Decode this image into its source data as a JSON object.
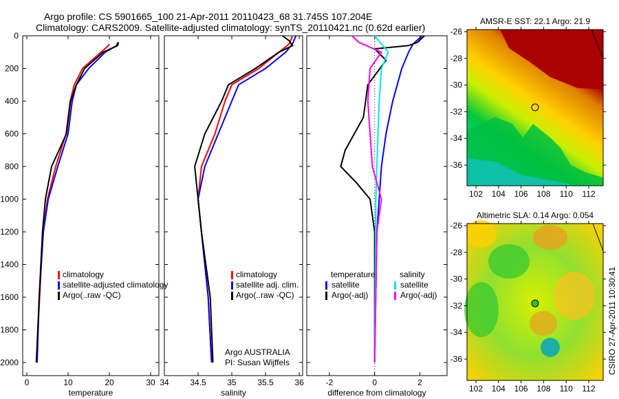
{
  "header": {
    "title_line1": "Argo profile: CS 5901665_100 21-Apr-2011 20110423_68 31.745S 107.204E",
    "title_line2": "Climatology: CARS2009. Satellite-adjusted climatology: synTS_20110421.nc (0.62d earlier)"
  },
  "colors": {
    "climatology": "#ff0000",
    "satellite": "#0000ff",
    "argo": "#000000",
    "sal_satellite": "#00e5ee",
    "sal_argo": "#ff00ff"
  },
  "chart_data": [
    {
      "type": "line",
      "xlabel": "temperature",
      "xlim": [
        -1,
        32
      ],
      "ylim": [
        0,
        2080
      ],
      "xticks": [
        "0",
        "10",
        "20",
        "30"
      ],
      "xtick_values": [
        0,
        10,
        20,
        30
      ],
      "yticks": [
        "0",
        "200",
        "400",
        "600",
        "800",
        "1000",
        "1200",
        "1400",
        "1600",
        "1800",
        "2000"
      ],
      "ytick_values": [
        0,
        200,
        400,
        600,
        800,
        1000,
        1200,
        1400,
        1600,
        1800,
        2000
      ],
      "legend": [
        "climatology",
        "satellite-adjusted climatology",
        "Argo(..raw -QC)"
      ],
      "series": [
        {
          "name": "climatology",
          "color": "#ff0000",
          "depth": [
            50,
            60,
            100,
            200,
            300,
            400,
            600,
            800,
            1000,
            1200,
            1400,
            1800
          ],
          "values": [
            20,
            19.8,
            18,
            13.5,
            11.5,
            10.5,
            9.5,
            7,
            5,
            4,
            3.5,
            2.7
          ]
        },
        {
          "name": "satellite-adjusted climatology",
          "color": "#0000ff",
          "depth": [
            40,
            60,
            100,
            200,
            300,
            400,
            600,
            800,
            1000,
            1200,
            1600,
            2000
          ],
          "values": [
            22,
            21.8,
            19,
            15,
            12,
            11,
            10,
            7.5,
            5.2,
            4,
            3,
            2.5
          ]
        },
        {
          "name": "Argo(..raw -QC)",
          "color": "#000000",
          "depth": [
            40,
            60,
            100,
            200,
            300,
            400,
            600,
            800,
            1000,
            1200,
            1600,
            2000
          ],
          "values": [
            22.2,
            22,
            18.5,
            14,
            12,
            10.6,
            9.6,
            6,
            4.5,
            3.8,
            3,
            2.3
          ]
        }
      ]
    },
    {
      "type": "line",
      "xlabel": "salinity",
      "xlim": [
        34,
        36.05
      ],
      "ylim": [
        0,
        2080
      ],
      "xticks": [
        "34",
        "34.5",
        "35",
        "35.5",
        "36"
      ],
      "xtick_values": [
        34,
        34.5,
        35,
        35.5,
        36
      ],
      "legend": [
        "climatology",
        "satellite adj. clim.",
        "Argo(..raw -QC)"
      ],
      "annotation": [
        "Argo AUSTRALIA",
        "PI: Susan Wijffels"
      ],
      "series": [
        {
          "name": "climatology",
          "color": "#ff0000",
          "depth": [
            0,
            50,
            100,
            200,
            300,
            400,
            600,
            800,
            1000,
            1200,
            1600,
            2000
          ],
          "values": [
            35.9,
            35.85,
            35.7,
            35.4,
            35.0,
            34.9,
            34.75,
            34.55,
            34.5,
            34.55,
            34.65,
            34.7
          ]
        },
        {
          "name": "satellite adj. clim.",
          "color": "#0000ff",
          "depth": [
            0,
            50,
            100,
            200,
            300,
            400,
            600,
            800,
            1000,
            1200,
            1600,
            2000
          ],
          "values": [
            35.95,
            35.9,
            35.8,
            35.5,
            35.1,
            35.0,
            34.8,
            34.6,
            34.5,
            34.55,
            34.65,
            34.7
          ]
        },
        {
          "name": "Argo(..raw -QC)",
          "color": "#000000",
          "depth": [
            0,
            30,
            60,
            100,
            200,
            300,
            400,
            600,
            800,
            1000,
            1200,
            1600,
            2000
          ],
          "values": [
            35.75,
            35.85,
            35.9,
            35.7,
            35.35,
            34.95,
            34.85,
            34.6,
            34.45,
            34.5,
            34.55,
            34.68,
            34.72
          ]
        }
      ]
    },
    {
      "type": "line",
      "xlabel": "difference from climatology",
      "xlim": [
        -3,
        3.2
      ],
      "ylim": [
        0,
        2080
      ],
      "xticks": [
        "-2",
        "0",
        "2"
      ],
      "xtick_values": [
        -2,
        0,
        2
      ],
      "legend_headers": [
        "temperature",
        "salinity"
      ],
      "legend": [
        "satellite",
        "Argo(-adj)",
        "satellite",
        "Argo(-adj)"
      ],
      "series": [
        {
          "name": "temperature satellite",
          "color": "#0000ff",
          "depth": [
            0,
            50,
            100,
            200,
            400,
            600,
            800,
            1000,
            1200,
            2000
          ],
          "values": [
            2.1,
            1.7,
            1.5,
            1.2,
            0.8,
            0.5,
            0.3,
            0.2,
            0.1,
            0
          ]
        },
        {
          "name": "temperature Argo(-adj)",
          "color": "#000000",
          "depth": [
            0,
            40,
            60,
            80,
            150,
            300,
            500,
            700,
            800,
            900,
            1000,
            1200,
            2000
          ],
          "values": [
            2.2,
            1.9,
            1.5,
            0,
            0.5,
            -0.3,
            -0.5,
            -1.3,
            -1.5,
            -0.8,
            -0.2,
            0,
            0
          ]
        },
        {
          "name": "salinity satellite",
          "color": "#00e5ee",
          "depth": [
            0,
            100,
            200,
            400,
            600,
            1000,
            2000
          ],
          "values": [
            0,
            0.6,
            0.3,
            0.2,
            0.15,
            0.05,
            0
          ]
        },
        {
          "name": "salinity Argo(-adj)",
          "color": "#ff00ff",
          "depth": [
            0,
            40,
            100,
            200,
            400,
            600,
            800,
            1000,
            1200,
            2000
          ],
          "values": [
            -1,
            -0.7,
            0.3,
            -0.2,
            -0.3,
            -0.2,
            -0.1,
            0.3,
            0.1,
            0
          ]
        }
      ]
    }
  ],
  "maps": [
    {
      "title": "AMSR-E SST: 22.1 Argo: 21.9",
      "xticks": [
        "102",
        "104",
        "106",
        "108",
        "110",
        "112"
      ],
      "yticks": [
        "-26",
        "-28",
        "-30",
        "-32",
        "-34",
        "-36"
      ]
    },
    {
      "title": "Altimetric SLA: 0.14 Argo: 0.054",
      "xticks": [
        "102",
        "104",
        "106",
        "108",
        "110",
        "112"
      ],
      "yticks": [
        "-26",
        "-28",
        "-30",
        "-32",
        "-34",
        "-36"
      ]
    }
  ],
  "footer": {
    "credit": "CSIRO 27-Apr-2011 10:30:41"
  }
}
